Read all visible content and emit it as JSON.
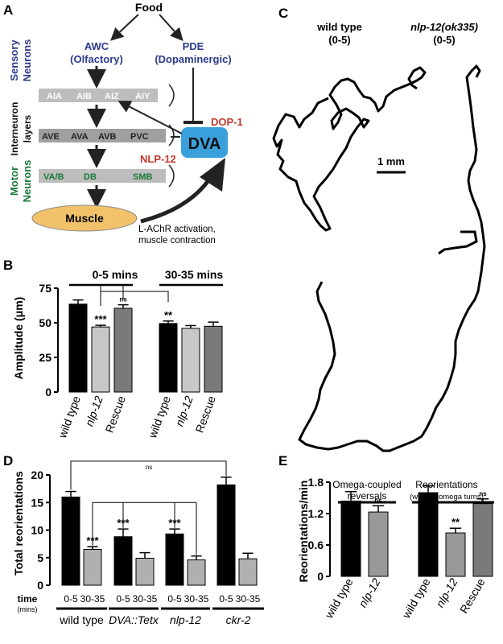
{
  "panels": {
    "A": "A",
    "B": "B",
    "C": "C",
    "D": "D",
    "E": "E"
  },
  "panelA": {
    "food": "Food",
    "awc": [
      "AWC",
      "(Olfactory)"
    ],
    "pde": [
      "PDE",
      "(Dopaminergic)"
    ],
    "sensory_label": [
      "Sensory",
      "Neurons"
    ],
    "inter_label": [
      "Interneuron",
      "layers"
    ],
    "motor_label": [
      "Motor",
      "Neurons"
    ],
    "inter_row1": [
      "AIA",
      "AIB",
      "AIZ",
      "AIY"
    ],
    "inter_row2": [
      "AVE",
      "AVA",
      "AVB",
      "PVC"
    ],
    "motor_row": [
      "VA/B",
      "DB",
      "SMB"
    ],
    "dva": "DVA",
    "dop1": "DOP-1",
    "nlp12": "NLP-12",
    "muscle": "Muscle",
    "lachr": [
      "L-AChR activation,",
      "muscle contraction"
    ],
    "colors": {
      "sensory": "#2e3a8c",
      "motor": "#1a7a3a",
      "red": "#c0392b",
      "dva": "#3aa0dc",
      "muscle": "#f2c26b",
      "bar": "#bdbdbd"
    }
  },
  "panelC": {
    "wt_label": [
      "wild type",
      "(0-5)"
    ],
    "mut_label": [
      "nlp-12(ok335)",
      "(0-5)"
    ],
    "scale": "1 mm"
  },
  "chart_data": [
    {
      "id": "B",
      "type": "bar",
      "ylabel": "Amplitude (μm)",
      "ylim": [
        0,
        75
      ],
      "yticks": [
        "0",
        "25",
        "50",
        "75"
      ],
      "categories": [
        "wild type",
        "nlp-12",
        "Rescue",
        "wild type",
        "nlp-12",
        "Rescue"
      ],
      "group_labels": [
        "0-5 mins",
        "30-35 mins"
      ],
      "values": [
        63.5,
        47.0,
        60.5,
        49.5,
        46.0,
        47.5
      ],
      "errors": [
        3.0,
        1.2,
        2.5,
        1.8,
        2.0,
        3.0
      ],
      "colors": [
        "#000000",
        "#c8c8c8",
        "#7a7a7a",
        "#000000",
        "#c8c8c8",
        "#7a7a7a"
      ],
      "annotations": [
        "",
        "***",
        "ns",
        "**",
        "",
        ""
      ]
    },
    {
      "id": "D",
      "type": "bar",
      "ylabel": "Total reorientations",
      "ylim": [
        0,
        20
      ],
      "yticks": [
        "0",
        "5",
        "10",
        "15",
        "20"
      ],
      "time_label": [
        "time",
        "(mins)"
      ],
      "time_ticks": [
        "0-5",
        "30-35"
      ],
      "groups": [
        "wild type",
        "DVA::Tetx",
        "nlp-12",
        "ckr-2"
      ],
      "values": [
        16.0,
        6.5,
        8.8,
        4.9,
        9.3,
        4.6,
        18.2,
        4.8
      ],
      "errors": [
        1.0,
        0.5,
        1.4,
        1.0,
        0.9,
        0.7,
        1.4,
        1.0
      ],
      "colors": [
        "#000000",
        "#b0b0b0",
        "#000000",
        "#b0b0b0",
        "#000000",
        "#b0b0b0",
        "#000000",
        "#b0b0b0"
      ],
      "annotations": [
        "",
        "***",
        "***",
        "",
        "***",
        "",
        "",
        ""
      ],
      "ns": "ns"
    },
    {
      "id": "E",
      "type": "bar",
      "ylabel": "Reorientations/min",
      "ylim": [
        0,
        1.8
      ],
      "yticks": [
        "0",
        "0.6",
        "1.2",
        "1.8"
      ],
      "group_titles": [
        [
          "Omega-coupled",
          "reversals"
        ],
        [
          "Reorientations",
          "(without omega turns)"
        ]
      ],
      "categories": [
        "wild type",
        "nlp-12",
        "wild type",
        "nlp-12",
        "Rescue"
      ],
      "values": [
        1.44,
        1.23,
        1.6,
        0.83,
        1.39
      ],
      "errors": [
        0.18,
        0.12,
        0.13,
        0.09,
        0.09
      ],
      "colors": [
        "#000000",
        "#999999",
        "#000000",
        "#999999",
        "#7a7a7a"
      ],
      "annotations": [
        "",
        "ns",
        "",
        "**",
        "ns"
      ]
    }
  ]
}
